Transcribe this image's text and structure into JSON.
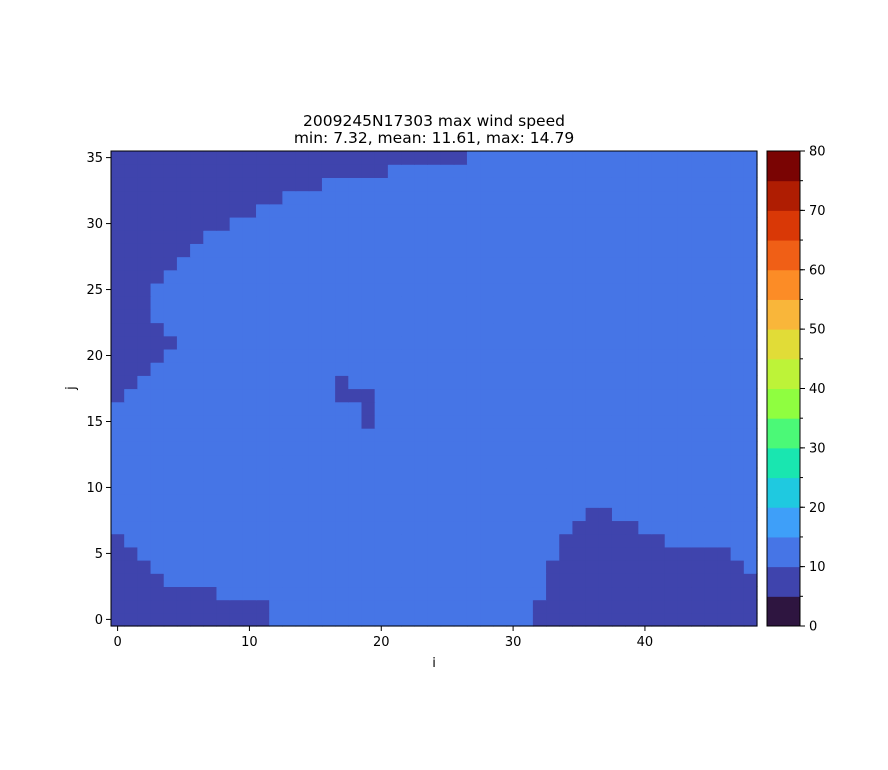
{
  "chart_data": {
    "type": "heatmap",
    "title": "2009245N17303 max wind speed",
    "subtitle": "min: 7.32, mean: 11.61, max: 14.79",
    "xlabel": "i",
    "ylabel": "j",
    "nx": 49,
    "ny": 36,
    "xlim": [
      -0.5,
      48.5
    ],
    "ylim": [
      -0.5,
      35.5
    ],
    "x_ticks": [
      0,
      10,
      20,
      30,
      40
    ],
    "y_ticks": [
      0,
      5,
      10,
      15,
      20,
      25,
      30,
      35
    ],
    "colorbar": {
      "levels": [
        0,
        5,
        10,
        15,
        20,
        25,
        30,
        35,
        40,
        45,
        50,
        55,
        60,
        65,
        70,
        75,
        80
      ],
      "tick_labels": [
        0,
        10,
        20,
        30,
        40,
        50,
        60,
        70,
        80
      ],
      "colors": [
        "#2e1540",
        "#3f44ad",
        "#4675e6",
        "#3e9ff9",
        "#1fc9e0",
        "#19e6b0",
        "#4bf977",
        "#8ffe40",
        "#bdf338",
        "#e1dc37",
        "#f9b63a",
        "#fc8c26",
        "#f05f16",
        "#d93806",
        "#af1d02",
        "#7a0403"
      ]
    },
    "fill_value": 12,
    "low_value": 8,
    "low_region_rows": [
      {
        "j": 35,
        "low_i_ranges": [
          [
            0,
            26
          ]
        ]
      },
      {
        "j": 34,
        "low_i_ranges": [
          [
            0,
            20
          ]
        ]
      },
      {
        "j": 33,
        "low_i_ranges": [
          [
            0,
            15
          ]
        ]
      },
      {
        "j": 32,
        "low_i_ranges": [
          [
            0,
            12
          ]
        ]
      },
      {
        "j": 31,
        "low_i_ranges": [
          [
            0,
            10
          ]
        ]
      },
      {
        "j": 30,
        "low_i_ranges": [
          [
            0,
            8
          ]
        ]
      },
      {
        "j": 29,
        "low_i_ranges": [
          [
            0,
            6
          ]
        ]
      },
      {
        "j": 28,
        "low_i_ranges": [
          [
            0,
            5
          ]
        ]
      },
      {
        "j": 27,
        "low_i_ranges": [
          [
            0,
            4
          ]
        ]
      },
      {
        "j": 26,
        "low_i_ranges": [
          [
            0,
            3
          ]
        ]
      },
      {
        "j": 25,
        "low_i_ranges": [
          [
            0,
            2
          ]
        ]
      },
      {
        "j": 24,
        "low_i_ranges": [
          [
            0,
            2
          ]
        ]
      },
      {
        "j": 23,
        "low_i_ranges": [
          [
            0,
            2
          ]
        ]
      },
      {
        "j": 22,
        "low_i_ranges": [
          [
            0,
            3
          ]
        ]
      },
      {
        "j": 21,
        "low_i_ranges": [
          [
            0,
            4
          ]
        ]
      },
      {
        "j": 20,
        "low_i_ranges": [
          [
            0,
            3
          ]
        ]
      },
      {
        "j": 19,
        "low_i_ranges": [
          [
            0,
            2
          ]
        ]
      },
      {
        "j": 18,
        "low_i_ranges": [
          [
            0,
            1
          ],
          [
            17,
            17
          ]
        ]
      },
      {
        "j": 17,
        "low_i_ranges": [
          [
            0,
            0
          ],
          [
            17,
            19
          ]
        ]
      },
      {
        "j": 16,
        "low_i_ranges": [
          [
            19,
            19
          ]
        ]
      },
      {
        "j": 15,
        "low_i_ranges": [
          [
            19,
            19
          ]
        ]
      },
      {
        "j": 8,
        "low_i_ranges": [
          [
            36,
            37
          ]
        ]
      },
      {
        "j": 7,
        "low_i_ranges": [
          [
            35,
            39
          ]
        ]
      },
      {
        "j": 6,
        "low_i_ranges": [
          [
            0,
            0
          ],
          [
            34,
            41
          ]
        ]
      },
      {
        "j": 5,
        "low_i_ranges": [
          [
            0,
            1
          ],
          [
            34,
            46
          ]
        ]
      },
      {
        "j": 4,
        "low_i_ranges": [
          [
            0,
            2
          ],
          [
            33,
            47
          ]
        ]
      },
      {
        "j": 3,
        "low_i_ranges": [
          [
            0,
            3
          ],
          [
            33,
            48
          ]
        ]
      },
      {
        "j": 2,
        "low_i_ranges": [
          [
            0,
            7
          ],
          [
            33,
            48
          ]
        ]
      },
      {
        "j": 1,
        "low_i_ranges": [
          [
            0,
            11
          ],
          [
            32,
            48
          ]
        ]
      },
      {
        "j": 0,
        "low_i_ranges": [
          [
            0,
            11
          ],
          [
            32,
            48
          ]
        ]
      }
    ]
  }
}
